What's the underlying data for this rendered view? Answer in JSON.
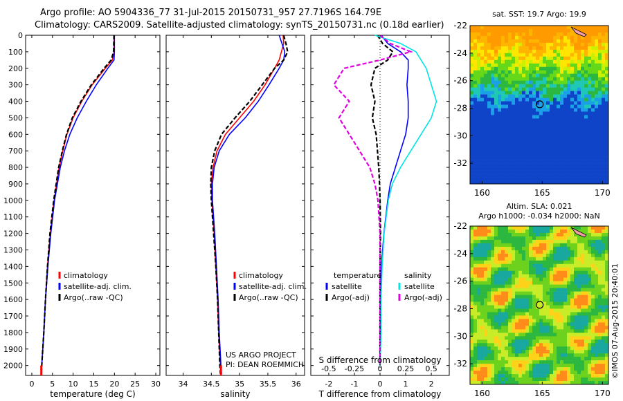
{
  "header": {
    "line1": "Argo profile: AO 5904336_77 31-Jul-2015 20150731_957 27.7196S 164.79E",
    "line2": "Climatology: CARS2009. Satellite-adjusted climatology: synTS_20150731.nc (0.18d earlier)"
  },
  "footer": {
    "copyright": "©IMOS 07-Aug-2015 20:40:01"
  },
  "chart_data": [
    {
      "type": "line",
      "xlabel": "temperature (deg C)",
      "ylim": [
        2060,
        0
      ],
      "xlim": [
        -1.5,
        31
      ],
      "yticks": [
        0,
        100,
        200,
        300,
        400,
        500,
        600,
        700,
        800,
        900,
        1000,
        1100,
        1200,
        1300,
        1400,
        1500,
        1600,
        1700,
        1800,
        1900,
        2000
      ],
      "xticks": [
        0,
        5,
        10,
        15,
        20,
        25,
        30
      ],
      "legend": [
        "climatology",
        "satellite-adj. clim.",
        "Argo(..raw -QC)"
      ],
      "series": [
        {
          "name": "climatology",
          "color": "#ff0000",
          "style": "solid",
          "depth": [
            0,
            100,
            150,
            200,
            300,
            400,
            500,
            600,
            700,
            800,
            1000,
            1200,
            1400,
            1600,
            1800,
            2000,
            2050
          ],
          "values": [
            19.9,
            19.9,
            19.5,
            17.8,
            14.6,
            12.1,
            10.0,
            8.5,
            7.5,
            6.6,
            5.4,
            4.5,
            3.8,
            3.3,
            2.9,
            2.4,
            2.3
          ]
        },
        {
          "name": "satellite-adj. clim.",
          "color": "#0000ff",
          "style": "solid",
          "depth": [
            0,
            100,
            150,
            200,
            300,
            400,
            500,
            600,
            700,
            800,
            1000,
            1200,
            1400,
            1600,
            1800,
            2000,
            2050
          ],
          "values": [
            20.0,
            20.0,
            19.9,
            18.4,
            15.6,
            13.2,
            11.0,
            9.2,
            7.9,
            6.9,
            5.5,
            4.6,
            3.9,
            3.3,
            2.9,
            2.4,
            2.3
          ]
        },
        {
          "name": "Argo(..raw -QC)",
          "color": "#000000",
          "style": "dashed",
          "depth": [
            0,
            100,
            150,
            200,
            300,
            400,
            500,
            600,
            700,
            800,
            1000,
            1200,
            1400,
            1600,
            1800,
            2000,
            2050
          ],
          "values": [
            19.9,
            19.8,
            19.2,
            17.5,
            14.4,
            11.9,
            9.8,
            8.4,
            7.4,
            6.5,
            5.3,
            4.4,
            3.8,
            3.3,
            2.9,
            2.4,
            2.3
          ]
        }
      ]
    },
    {
      "type": "line",
      "xlabel": "salinity",
      "ylim": [
        2060,
        0
      ],
      "xlim": [
        33.7,
        36.15
      ],
      "xticks": [
        34,
        34.5,
        35,
        35.5,
        36
      ],
      "legend": [
        "climatology",
        "satellite-adj. clim.",
        "Argo(..raw -QC)"
      ],
      "annotation": [
        "US ARGO PROJECT",
        "PI: DEAN ROEMMICH"
      ],
      "series": [
        {
          "name": "climatology",
          "color": "#ff0000",
          "style": "solid",
          "depth": [
            0,
            50,
            100,
            150,
            200,
            300,
            400,
            500,
            600,
            700,
            800,
            900,
            1000,
            1200,
            1400,
            1600,
            1800,
            2000,
            2050
          ],
          "values": [
            35.77,
            35.78,
            35.74,
            35.7,
            35.62,
            35.45,
            35.25,
            35.0,
            34.75,
            34.6,
            34.53,
            34.5,
            34.51,
            34.55,
            34.58,
            34.61,
            34.63,
            34.66,
            34.67
          ]
        },
        {
          "name": "satellite-adj. clim.",
          "color": "#0000ff",
          "style": "solid",
          "depth": [
            0,
            50,
            100,
            150,
            200,
            300,
            400,
            500,
            600,
            700,
            800,
            900,
            1000,
            1200,
            1400,
            1600,
            1800,
            2000,
            2050
          ],
          "values": [
            35.7,
            35.75,
            35.8,
            35.78,
            35.7,
            35.52,
            35.33,
            35.1,
            34.82,
            34.64,
            34.55,
            34.52,
            34.52,
            34.56,
            34.59,
            34.62,
            34.64,
            34.67,
            34.68
          ]
        },
        {
          "name": "Argo(..raw -QC)",
          "color": "#000000",
          "style": "dashed",
          "depth": [
            0,
            50,
            100,
            150,
            200,
            300,
            400,
            500,
            600,
            700,
            800,
            900,
            1000,
            1200,
            1400,
            1600,
            1800,
            2000,
            2050
          ],
          "values": [
            35.78,
            35.82,
            35.85,
            35.78,
            35.62,
            35.4,
            35.18,
            34.92,
            34.68,
            34.56,
            34.5,
            34.49,
            34.5,
            34.54,
            34.58,
            34.61,
            34.63,
            34.65,
            34.66
          ]
        }
      ]
    },
    {
      "type": "line",
      "xlabel": "T difference from climatology",
      "toplabel": "S difference from climatology",
      "ylim": [
        2060,
        0
      ],
      "xlim": [
        -2.7,
        2.7
      ],
      "xticks": [
        -2,
        -1,
        0,
        1,
        2
      ],
      "top_ticks": [
        "-0.5",
        "-0.25",
        "0",
        "0.25",
        "0.5"
      ],
      "legend_titles": [
        "temperature",
        "salinity"
      ],
      "legend": [
        "satellite",
        "Argo(-adj)",
        "satellite",
        "Argo(-adj)"
      ],
      "series": [
        {
          "name": "satellite",
          "quantity": "temperature",
          "color": "#0000ff",
          "style": "solid",
          "depth": [
            0,
            50,
            100,
            150,
            200,
            300,
            400,
            500,
            600,
            700,
            800,
            900,
            1000,
            1200,
            1400,
            1600,
            1800,
            2000
          ],
          "values": [
            0.05,
            0.3,
            0.8,
            1.1,
            1.1,
            1.05,
            1.1,
            1.1,
            1.0,
            0.8,
            0.6,
            0.4,
            0.3,
            0.15,
            0.05,
            0.02,
            0.01,
            0.0
          ]
        },
        {
          "name": "Argo(-adj)",
          "quantity": "temperature",
          "color": "#000000",
          "style": "dashed",
          "depth": [
            0,
            50,
            100,
            150,
            200,
            300,
            400,
            500,
            600,
            700,
            800,
            900,
            1000,
            1200,
            1400,
            1600,
            1800,
            2000
          ],
          "values": [
            -0.1,
            0.1,
            0.5,
            0.3,
            -0.2,
            -0.35,
            -0.2,
            -0.3,
            -0.15,
            -0.1,
            -0.05,
            -0.02,
            0.0,
            0.02,
            0.0,
            0.0,
            0.0,
            0.0
          ]
        },
        {
          "name": "satellite",
          "quantity": "salinity",
          "color": "#00e5e5",
          "style": "solid",
          "depth": [
            0,
            50,
            100,
            150,
            200,
            300,
            400,
            500,
            600,
            700,
            800,
            900,
            1000,
            1200,
            1400,
            1600,
            1800,
            2000
          ],
          "values": [
            -0.05,
            0.2,
            0.35,
            0.4,
            0.45,
            0.5,
            0.55,
            0.5,
            0.4,
            0.3,
            0.2,
            0.12,
            0.08,
            0.04,
            0.02,
            0.01,
            0.01,
            0.0
          ]
        },
        {
          "name": "Argo(-adj)",
          "quantity": "salinity",
          "color": "#e000e0",
          "style": "dashed",
          "depth": [
            0,
            50,
            100,
            150,
            200,
            300,
            400,
            500,
            600,
            700,
            800,
            900,
            1000,
            1200,
            1400,
            1600,
            1800,
            2000
          ],
          "values": [
            0.0,
            0.1,
            0.3,
            0.0,
            -0.35,
            -0.45,
            -0.3,
            -0.4,
            -0.3,
            -0.2,
            -0.1,
            -0.05,
            -0.02,
            0.0,
            0.0,
            0.0,
            0.0,
            0.0
          ]
        }
      ]
    },
    {
      "type": "heatmap",
      "title": "sat. SST: 19.7 Argo: 19.9",
      "xlim": [
        159,
        170.5
      ],
      "ylim": [
        -33.5,
        -22
      ],
      "xticks": [
        160,
        165,
        170
      ],
      "yticks": [
        -22,
        -24,
        -26,
        -28,
        -30,
        -32
      ],
      "marker": {
        "lon": 164.79,
        "lat": -27.72
      }
    },
    {
      "type": "heatmap",
      "title": "Altim. SLA: 0.021",
      "subtitle": "Argo h1000: -0.034 h2000: NaN",
      "xlim": [
        159,
        170.5
      ],
      "ylim": [
        -33.5,
        -22
      ],
      "xticks": [
        160,
        165,
        170
      ],
      "yticks": [
        -22,
        -24,
        -26,
        -28,
        -30,
        -32
      ],
      "marker": {
        "lon": 164.79,
        "lat": -27.72
      }
    }
  ]
}
